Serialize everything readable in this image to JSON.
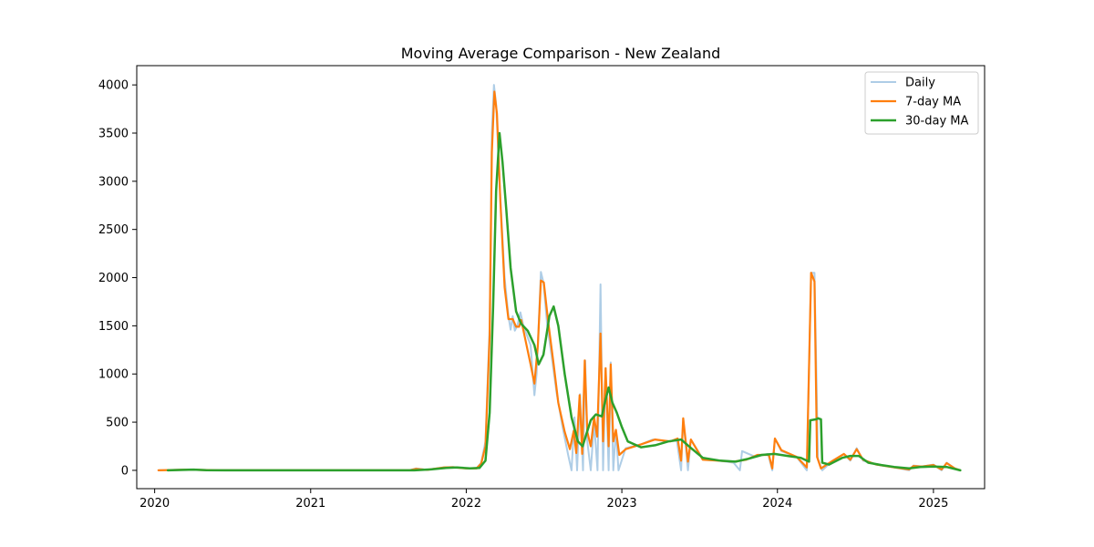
{
  "chart_data": {
    "type": "line",
    "title": "Moving Average Comparison - New Zealand",
    "xlabel": "",
    "ylabel": "",
    "x_ticks": [
      "2020",
      "2021",
      "2022",
      "2023",
      "2024",
      "2025"
    ],
    "y_ticks": [
      "0",
      "500",
      "1000",
      "1500",
      "2000",
      "2500",
      "3000",
      "3500",
      "4000"
    ],
    "xlim": [
      "2019-11-20",
      "2025-05-01"
    ],
    "ylim": [
      -190,
      4200
    ],
    "grid": false,
    "legend_position": "upper right",
    "series": [
      {
        "name": "Daily",
        "color": "#aecde6",
        "points": [
          [
            "2020-01-10",
            0
          ],
          [
            "2020-03-25",
            10
          ],
          [
            "2020-04-10",
            5
          ],
          [
            "2020-06-01",
            0
          ],
          [
            "2021-08-20",
            0
          ],
          [
            "2021-09-05",
            20
          ],
          [
            "2021-10-01",
            5
          ],
          [
            "2021-11-10",
            30
          ],
          [
            "2021-12-01",
            35
          ],
          [
            "2022-01-01",
            20
          ],
          [
            "2022-01-25",
            20
          ],
          [
            "2022-02-05",
            80
          ],
          [
            "2022-02-15",
            300
          ],
          [
            "2022-02-25",
            1500
          ],
          [
            "2022-03-02",
            3500
          ],
          [
            "2022-03-07",
            4000
          ],
          [
            "2022-03-12",
            3800
          ],
          [
            "2022-03-20",
            3000
          ],
          [
            "2022-04-01",
            2000
          ],
          [
            "2022-04-10",
            1600
          ],
          [
            "2022-04-15",
            1460
          ],
          [
            "2022-04-20",
            1600
          ],
          [
            "2022-04-25",
            1450
          ],
          [
            "2022-05-01",
            1500
          ],
          [
            "2022-05-08",
            1640
          ],
          [
            "2022-05-15",
            1500
          ],
          [
            "2022-06-01",
            1300
          ],
          [
            "2022-06-10",
            780
          ],
          [
            "2022-06-15",
            1000
          ],
          [
            "2022-06-25",
            2060
          ],
          [
            "2022-07-01",
            1950
          ],
          [
            "2022-07-10",
            1500
          ],
          [
            "2022-07-20",
            1200
          ],
          [
            "2022-08-01",
            800
          ],
          [
            "2022-08-15",
            450
          ],
          [
            "2022-08-28",
            160
          ],
          [
            "2022-09-05",
            0
          ],
          [
            "2022-09-12",
            550
          ],
          [
            "2022-09-18",
            0
          ],
          [
            "2022-09-25",
            790
          ],
          [
            "2022-10-02",
            0
          ],
          [
            "2022-10-07",
            1140
          ],
          [
            "2022-10-12",
            300
          ],
          [
            "2022-10-20",
            0
          ],
          [
            "2022-10-28",
            500
          ],
          [
            "2022-11-05",
            0
          ],
          [
            "2022-11-12",
            1930
          ],
          [
            "2022-11-18",
            0
          ],
          [
            "2022-11-24",
            1060
          ],
          [
            "2022-12-01",
            0
          ],
          [
            "2022-12-06",
            1120
          ],
          [
            "2022-12-12",
            0
          ],
          [
            "2022-12-18",
            420
          ],
          [
            "2022-12-24",
            0
          ],
          [
            "2023-01-10",
            230
          ],
          [
            "2023-02-15",
            270
          ],
          [
            "2023-03-15",
            320
          ],
          [
            "2023-04-20",
            300
          ],
          [
            "2023-05-10",
            310
          ],
          [
            "2023-05-20",
            0
          ],
          [
            "2023-05-25",
            540
          ],
          [
            "2023-06-05",
            0
          ],
          [
            "2023-06-12",
            320
          ],
          [
            "2023-07-10",
            120
          ],
          [
            "2023-08-15",
            100
          ],
          [
            "2023-09-20",
            80
          ],
          [
            "2023-10-05",
            0
          ],
          [
            "2023-10-10",
            200
          ],
          [
            "2023-11-10",
            140
          ],
          [
            "2023-12-10",
            170
          ],
          [
            "2023-12-20",
            0
          ],
          [
            "2023-12-26",
            330
          ],
          [
            "2024-01-10",
            200
          ],
          [
            "2024-02-15",
            140
          ],
          [
            "2024-03-10",
            0
          ],
          [
            "2024-03-20",
            2050
          ],
          [
            "2024-03-28",
            2050
          ],
          [
            "2024-04-05",
            120
          ],
          [
            "2024-04-15",
            0
          ],
          [
            "2024-05-10",
            100
          ],
          [
            "2024-06-05",
            170
          ],
          [
            "2024-06-20",
            100
          ],
          [
            "2024-07-05",
            230
          ],
          [
            "2024-07-20",
            100
          ],
          [
            "2024-08-20",
            60
          ],
          [
            "2024-10-01",
            30
          ],
          [
            "2024-11-05",
            0
          ],
          [
            "2024-11-15",
            50
          ],
          [
            "2024-12-05",
            40
          ],
          [
            "2025-01-01",
            60
          ],
          [
            "2025-01-20",
            0
          ],
          [
            "2025-02-01",
            80
          ],
          [
            "2025-02-20",
            20
          ],
          [
            "2025-03-05",
            0
          ]
        ]
      },
      {
        "name": "7-day MA",
        "color": "#ff7f0e",
        "points": [
          [
            "2020-01-10",
            0
          ],
          [
            "2020-03-25",
            8
          ],
          [
            "2020-04-10",
            5
          ],
          [
            "2020-06-01",
            0
          ],
          [
            "2021-08-20",
            0
          ],
          [
            "2021-09-05",
            15
          ],
          [
            "2021-10-01",
            5
          ],
          [
            "2021-11-10",
            30
          ],
          [
            "2021-12-01",
            32
          ],
          [
            "2022-01-01",
            20
          ],
          [
            "2022-01-25",
            20
          ],
          [
            "2022-02-05",
            70
          ],
          [
            "2022-02-15",
            250
          ],
          [
            "2022-02-25",
            1400
          ],
          [
            "2022-03-02",
            3300
          ],
          [
            "2022-03-08",
            3930
          ],
          [
            "2022-03-14",
            3700
          ],
          [
            "2022-03-22",
            2800
          ],
          [
            "2022-04-01",
            1900
          ],
          [
            "2022-04-10",
            1570
          ],
          [
            "2022-04-20",
            1570
          ],
          [
            "2022-04-28",
            1490
          ],
          [
            "2022-05-05",
            1490
          ],
          [
            "2022-05-10",
            1560
          ],
          [
            "2022-05-20",
            1350
          ],
          [
            "2022-06-01",
            1100
          ],
          [
            "2022-06-10",
            900
          ],
          [
            "2022-06-18",
            1300
          ],
          [
            "2022-06-25",
            1970
          ],
          [
            "2022-07-02",
            1950
          ],
          [
            "2022-07-12",
            1550
          ],
          [
            "2022-07-25",
            1100
          ],
          [
            "2022-08-05",
            700
          ],
          [
            "2022-08-20",
            400
          ],
          [
            "2022-09-01",
            220
          ],
          [
            "2022-09-10",
            410
          ],
          [
            "2022-09-16",
            180
          ],
          [
            "2022-09-24",
            780
          ],
          [
            "2022-09-30",
            170
          ],
          [
            "2022-10-06",
            1140
          ],
          [
            "2022-10-12",
            400
          ],
          [
            "2022-10-20",
            250
          ],
          [
            "2022-10-28",
            550
          ],
          [
            "2022-11-04",
            350
          ],
          [
            "2022-11-12",
            1420
          ],
          [
            "2022-11-18",
            300
          ],
          [
            "2022-11-24",
            1060
          ],
          [
            "2022-12-01",
            250
          ],
          [
            "2022-12-06",
            1100
          ],
          [
            "2022-12-12",
            300
          ],
          [
            "2022-12-18",
            420
          ],
          [
            "2022-12-26",
            160
          ],
          [
            "2023-01-10",
            220
          ],
          [
            "2023-02-15",
            270
          ],
          [
            "2023-03-20",
            320
          ],
          [
            "2023-04-25",
            300
          ],
          [
            "2023-05-12",
            330
          ],
          [
            "2023-05-20",
            100
          ],
          [
            "2023-05-25",
            540
          ],
          [
            "2023-06-05",
            90
          ],
          [
            "2023-06-12",
            320
          ],
          [
            "2023-07-10",
            110
          ],
          [
            "2023-08-15",
            100
          ],
          [
            "2023-09-20",
            90
          ],
          [
            "2023-10-20",
            110
          ],
          [
            "2023-11-15",
            160
          ],
          [
            "2023-12-12",
            160
          ],
          [
            "2023-12-20",
            20
          ],
          [
            "2023-12-26",
            330
          ],
          [
            "2024-01-10",
            210
          ],
          [
            "2024-02-15",
            140
          ],
          [
            "2024-03-10",
            30
          ],
          [
            "2024-03-20",
            2050
          ],
          [
            "2024-03-28",
            1960
          ],
          [
            "2024-04-03",
            140
          ],
          [
            "2024-04-12",
            20
          ],
          [
            "2024-05-10",
            100
          ],
          [
            "2024-06-05",
            170
          ],
          [
            "2024-06-20",
            110
          ],
          [
            "2024-07-05",
            220
          ],
          [
            "2024-07-20",
            110
          ],
          [
            "2024-08-20",
            60
          ],
          [
            "2024-10-01",
            30
          ],
          [
            "2024-11-05",
            10
          ],
          [
            "2024-11-15",
            45
          ],
          [
            "2024-12-05",
            40
          ],
          [
            "2025-01-01",
            55
          ],
          [
            "2025-01-20",
            10
          ],
          [
            "2025-02-01",
            75
          ],
          [
            "2025-02-20",
            20
          ],
          [
            "2025-03-05",
            0
          ]
        ]
      },
      {
        "name": "30-day MA",
        "color": "#2ca02c",
        "points": [
          [
            "2020-02-01",
            0
          ],
          [
            "2020-04-01",
            8
          ],
          [
            "2020-05-01",
            2
          ],
          [
            "2020-06-15",
            0
          ],
          [
            "2021-09-01",
            0
          ],
          [
            "2021-10-10",
            10
          ],
          [
            "2021-11-15",
            25
          ],
          [
            "2021-12-10",
            30
          ],
          [
            "2022-01-10",
            20
          ],
          [
            "2022-02-01",
            25
          ],
          [
            "2022-02-15",
            100
          ],
          [
            "2022-02-25",
            600
          ],
          [
            "2022-03-05",
            1700
          ],
          [
            "2022-03-12",
            2900
          ],
          [
            "2022-03-20",
            3500
          ],
          [
            "2022-03-27",
            3200
          ],
          [
            "2022-04-05",
            2700
          ],
          [
            "2022-04-15",
            2100
          ],
          [
            "2022-04-28",
            1650
          ],
          [
            "2022-05-10",
            1520
          ],
          [
            "2022-05-25",
            1450
          ],
          [
            "2022-06-10",
            1300
          ],
          [
            "2022-06-20",
            1100
          ],
          [
            "2022-07-01",
            1200
          ],
          [
            "2022-07-15",
            1600
          ],
          [
            "2022-07-25",
            1700
          ],
          [
            "2022-08-05",
            1500
          ],
          [
            "2022-08-20",
            1000
          ],
          [
            "2022-09-05",
            550
          ],
          [
            "2022-09-20",
            300
          ],
          [
            "2022-10-01",
            250
          ],
          [
            "2022-10-10",
            380
          ],
          [
            "2022-10-20",
            520
          ],
          [
            "2022-11-01",
            580
          ],
          [
            "2022-11-15",
            560
          ],
          [
            "2022-11-22",
            700
          ],
          [
            "2022-12-01",
            860
          ],
          [
            "2022-12-10",
            700
          ],
          [
            "2022-12-20",
            600
          ],
          [
            "2023-01-01",
            450
          ],
          [
            "2023-01-15",
            300
          ],
          [
            "2023-02-15",
            240
          ],
          [
            "2023-03-20",
            260
          ],
          [
            "2023-04-20",
            300
          ],
          [
            "2023-05-20",
            320
          ],
          [
            "2023-06-10",
            240
          ],
          [
            "2023-07-10",
            130
          ],
          [
            "2023-08-20",
            100
          ],
          [
            "2023-09-25",
            90
          ],
          [
            "2023-10-25",
            120
          ],
          [
            "2023-11-25",
            160
          ],
          [
            "2023-12-25",
            170
          ],
          [
            "2024-01-25",
            150
          ],
          [
            "2024-02-25",
            130
          ],
          [
            "2024-03-15",
            90
          ],
          [
            "2024-03-18",
            520
          ],
          [
            "2024-04-01",
            530
          ],
          [
            "2024-04-05",
            540
          ],
          [
            "2024-04-12",
            530
          ],
          [
            "2024-04-15",
            80
          ],
          [
            "2024-05-01",
            60
          ],
          [
            "2024-06-01",
            130
          ],
          [
            "2024-06-20",
            150
          ],
          [
            "2024-07-10",
            150
          ],
          [
            "2024-08-01",
            80
          ],
          [
            "2024-09-01",
            55
          ],
          [
            "2024-10-01",
            35
          ],
          [
            "2024-11-05",
            20
          ],
          [
            "2024-12-01",
            35
          ],
          [
            "2025-01-01",
            40
          ],
          [
            "2025-02-01",
            35
          ],
          [
            "2025-03-05",
            0
          ]
        ]
      }
    ]
  }
}
